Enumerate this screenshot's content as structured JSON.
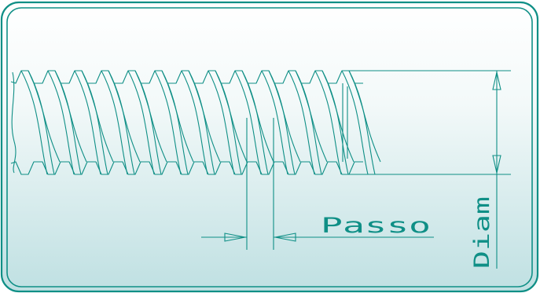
{
  "diagram": {
    "labels": {
      "pitch": "Passo",
      "diameter": "Diam"
    },
    "colors": {
      "line": "#0f8f86",
      "frame": "#0f8f86",
      "background_top": "#ffffff",
      "background_bottom": "#bfe0e2"
    },
    "thread": {
      "visible_crests": 13
    }
  }
}
